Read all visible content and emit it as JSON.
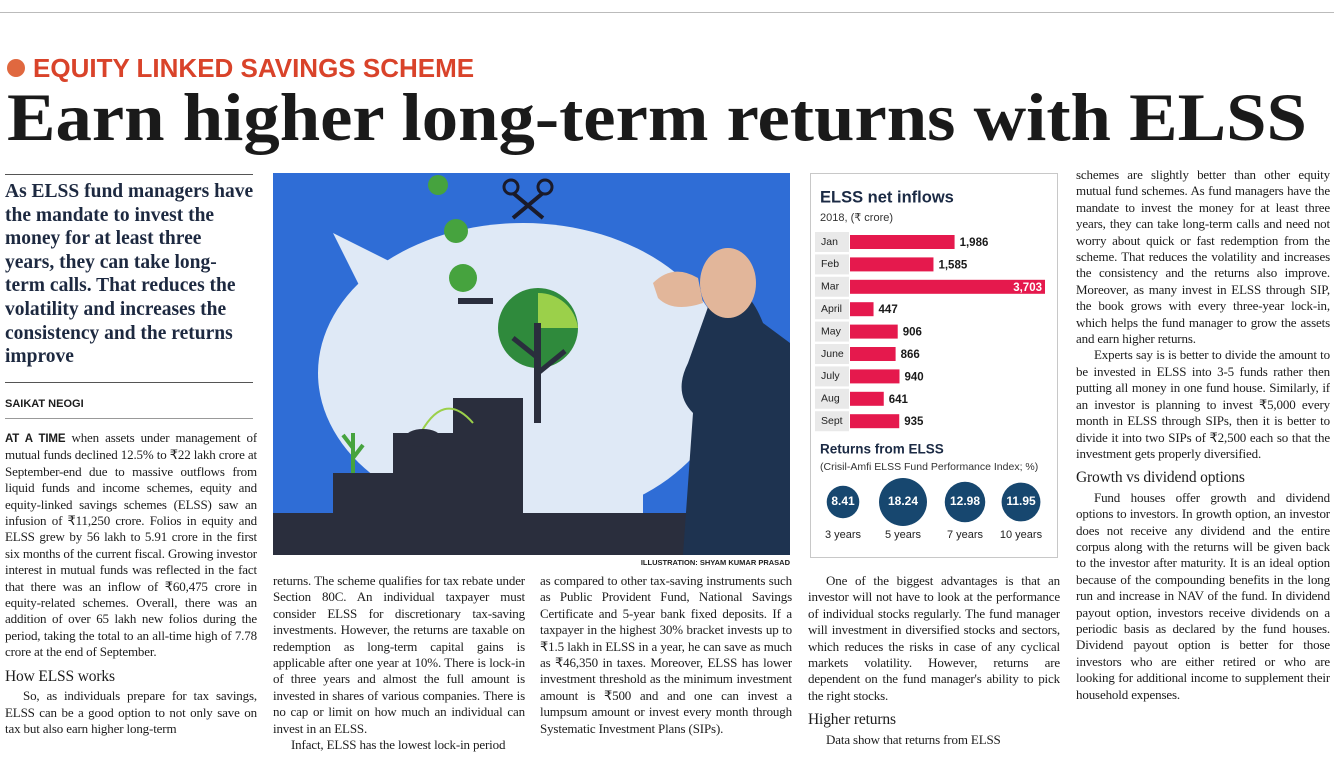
{
  "header": {
    "kicker": "EQUITY LINKED SAVINGS SCHEME",
    "title": "Earn higher long-term returns with ELSS"
  },
  "standfirst": "As ELSS fund managers have the mandate to invest the money for at least three years, they can take long-term calls. That reduces the volatility and increases the consistency and the returns improve",
  "byline": "SAIKAT NEOGI",
  "illustration_credit": "ILLUSTRATION: SHYAM KUMAR PRASAD",
  "columns": [
    [
      {
        "lead_in": "AT A TIME",
        "text": "when assets under management of mutual funds declined 12.5% to ₹22 lakh crore at September-end due to massive outflows from liquid funds and income schemes, equity and equity-linked savings schemes (ELSS) saw an infusion of ₹11,250 crore. Folios in equity and ELSS grew by 56 lakh to 5.91 crore in the first six months of the current fiscal. Growing investor interest in mutual funds was reflected in the fact that there was an inflow of ₹60,475 crore in equity-related schemes. Overall, there was an addition of over 65 lakh new folios during the period, taking the total to an all-time high of 7.78 crore at the end of September."
      },
      {
        "heading": "How ELSS works"
      },
      {
        "text": "So, as individuals prepare for tax savings, ELSS can be a good option to not only save on tax but also earn higher long-term"
      }
    ],
    [
      {
        "text": "returns. The scheme qualifies for tax rebate under Section 80C. An individual taxpayer must consider ELSS for discretionary tax-saving investments. However, the returns are taxable on redemption as long-term capital gains is applicable after one year at 10%. There is lock-in of three years and almost the full amount is invested in shares of various companies. There is no cap or limit on how much an individual can invest in an ELSS."
      },
      {
        "text": "Infact, ELSS has the lowest lock-in period"
      }
    ],
    [
      {
        "text": "as compared to other tax-saving instruments such as Public Provident Fund, National Savings Certificate and 5-year bank fixed deposits. If a taxpayer in the highest 30% bracket invests up to ₹1.5 lakh in ELSS in a year, he can save as much as ₹46,350 in taxes. Moreover, ELSS has lower investment threshold as the minimum investment amount is ₹500 and and one can invest a lumpsum amount or invest every month through Systematic Investment Plans (SIPs)."
      }
    ],
    [
      {
        "text": "One of the biggest advantages is that an investor will not have to look at the performance of individual stocks regularly. The fund manager will investment in diversified stocks and sectors, which reduces the risks in case of any cyclical markets volatility. However, returns are dependent on the fund manager's ability to pick the right stocks."
      },
      {
        "heading": "Higher returns"
      },
      {
        "text": "Data show that returns from ELSS"
      }
    ],
    [
      {
        "text": "schemes are slightly better than other equity mutual fund schemes. As fund managers have the mandate to invest the money for at least three years, they can take long-term calls and need not worry about quick or fast redemption from the scheme. That reduces the volatility and increases the consistency and the returns also improve. Moreover, as many invest in ELSS through SIP, the book grows with every three-year lock-in, which helps the fund manager to grow the assets and earn higher returns."
      },
      {
        "text": "Experts say is is better to divide the amount to be invested in ELSS into 3-5 funds rather then putting all money in one fund house. Similarly, if an investor is planning to invest ₹5,000 every month in ELSS through SIPs, then it is better to divide it into two SIPs of ₹2,500 each so that the investment gets properly diversified."
      },
      {
        "heading": "Growth vs dividend options"
      },
      {
        "text": "Fund houses offer growth and dividend options to investors. In growth option, an investor does not receive any dividend and the entire corpus along with the returns will be given back to the investor after maturity. It is an ideal option because of the compounding benefits in the long run and increase in NAV of the fund. In dividend payout option, investors receive dividends on a periodic basis as declared by the fund houses. Dividend payout option is better for those investors who are either retired or who are looking for additional income to supplement their household expenses."
      }
    ]
  ],
  "chart_data": [
    {
      "type": "bar",
      "orientation": "horizontal",
      "title": "ELSS net inflows",
      "subtitle": "2018, (₹ crore)",
      "categories": [
        "Jan",
        "Feb",
        "Mar",
        "April",
        "May",
        "June",
        "July",
        "Aug",
        "Sept"
      ],
      "values": [
        1986,
        1585,
        3703,
        447,
        906,
        866,
        940,
        641,
        935
      ],
      "value_labels": [
        "1,986",
        "1,585",
        "3,703",
        "447",
        "906",
        "866",
        "940",
        "641",
        "935"
      ],
      "color": "#e5194d"
    },
    {
      "type": "bubble",
      "title": "Returns from ELSS",
      "subtitle": "(Crisil-Amfi ELSS Fund Performance Index; %)",
      "categories": [
        "3 years",
        "5 years",
        "7 years",
        "10 years"
      ],
      "values": [
        8.41,
        18.24,
        12.98,
        11.95
      ],
      "color": "#17476f"
    }
  ]
}
